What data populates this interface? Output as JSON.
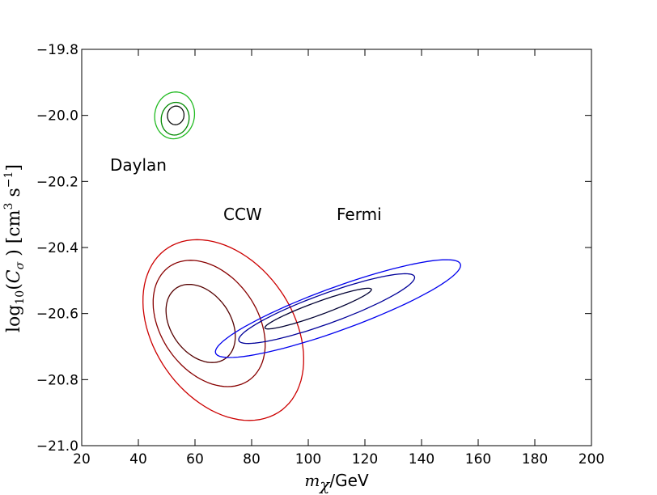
{
  "chart_data": {
    "type": "contour",
    "title": "",
    "xlabel": "m_χ/GeV",
    "xlabel_parts": {
      "math": "m",
      "sub": "χ",
      "unit": "/GeV"
    },
    "ylabel": "log10(Cσ ) [cm3 s−1]",
    "ylabel_parts": {
      "prefix": "log",
      "log_sub": "10",
      "open": "(",
      "var": "C",
      "var_sub": "σ",
      "close": " )",
      "units": " [cm",
      "exp1": "3",
      "mid": " s",
      "exp2": "−1",
      "end": "]"
    },
    "xlim": [
      20,
      200
    ],
    "ylim": [
      -21.0,
      -19.8
    ],
    "xticks": [
      20,
      40,
      60,
      80,
      100,
      120,
      140,
      160,
      180,
      200
    ],
    "xtick_labels": [
      "20",
      "40",
      "60",
      "80",
      "100",
      "120",
      "140",
      "160",
      "180",
      "200"
    ],
    "yticks": [
      -21.0,
      -20.8,
      -20.6,
      -20.4,
      -20.2,
      -20.0,
      -19.8
    ],
    "ytick_labels": [
      "−21.0",
      "−20.8",
      "−20.6",
      "−20.4",
      "−20.2",
      "−20.0",
      "−19.8"
    ],
    "grid": false,
    "annotations": [
      {
        "text": "Daylan",
        "x": 30,
        "y": -20.15
      },
      {
        "text": "CCW",
        "x": 70,
        "y": -20.3
      },
      {
        "text": "Fermi",
        "x": 110,
        "y": -20.3
      }
    ],
    "regions": [
      {
        "name": "Daylan",
        "contours": [
          {
            "level": 1,
            "color": "#111111",
            "cx": 53.2,
            "cy": -20.0,
            "a": 3.3,
            "b": 0.025,
            "angle_deg": 80
          },
          {
            "level": 2,
            "color": "#008800",
            "cx": 53.0,
            "cy": -20.01,
            "a": 5.8,
            "b": 0.042,
            "angle_deg": 80
          },
          {
            "level": 3,
            "color": "#22bb22",
            "cx": 52.8,
            "cy": -20.0,
            "a": 8.3,
            "b": 0.06,
            "angle_deg": 80
          }
        ]
      },
      {
        "name": "CCW",
        "contours": [
          {
            "level": 1,
            "color": "#550000",
            "cx": 62,
            "cy": -20.63,
            "a": 10.5,
            "b": 0.13,
            "angle_deg": 35
          },
          {
            "level": 2,
            "color": "#880000",
            "cx": 65,
            "cy": -20.63,
            "a": 17,
            "b": 0.21,
            "angle_deg": 35
          },
          {
            "level": 3,
            "color": "#cc0000",
            "cx": 70,
            "cy": -20.65,
            "a": 24.5,
            "b": 0.3,
            "angle_deg": 35
          }
        ]
      },
      {
        "name": "Fermi",
        "contours": [
          {
            "level": 1,
            "color": "#000033",
            "cx": 103.5,
            "cy": -20.585,
            "a": 20,
            "b": 0.02,
            "angle_deg": 20
          },
          {
            "level": 2,
            "color": "#000099",
            "cx": 106.5,
            "cy": -20.585,
            "a": 33,
            "b": 0.045,
            "angle_deg": 20
          },
          {
            "level": 3,
            "color": "#0000ee",
            "cx": 110.5,
            "cy": -20.585,
            "a": 46,
            "b": 0.065,
            "angle_deg": 20
          }
        ]
      }
    ]
  }
}
